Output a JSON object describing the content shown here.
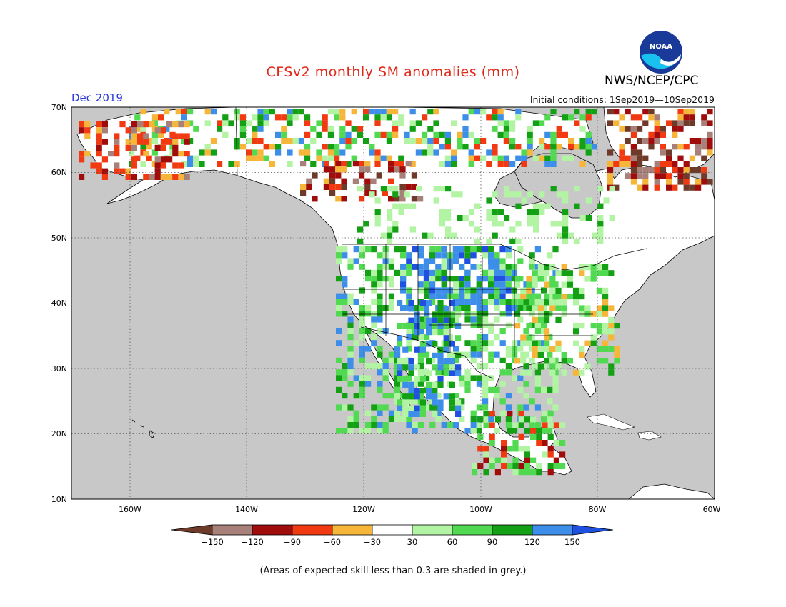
{
  "header": {
    "title": "CFSv2 monthly SM anomalies (mm)",
    "valid_month": "Dec 2019",
    "initial_conditions": "Initial conditions: 1Sep2019—10Sep2019",
    "agency": "NWS/NCEP/CPC",
    "logo_text": "NOAA"
  },
  "map": {
    "lat_labels": [
      "70N",
      "60N",
      "50N",
      "40N",
      "30N",
      "20N",
      "10N"
    ],
    "lon_labels": [
      "160W",
      "140W",
      "120W",
      "100W",
      "80W",
      "60W"
    ],
    "extent": {
      "lon": [
        -170,
        -60
      ],
      "lat": [
        10,
        70
      ]
    },
    "ocean_color": "#c8c8c8",
    "land_color": "#ffffff"
  },
  "colorbar": {
    "ticks": [
      "−150",
      "−120",
      "−90",
      "−60",
      "−30",
      "30",
      "60",
      "90",
      "120",
      "150"
    ],
    "colors": [
      "#6e3a2a",
      "#a8807a",
      "#a00c0c",
      "#f23a12",
      "#f6b63a",
      "#ffffff",
      "#b2f4a4",
      "#52d952",
      "#14a014",
      "#3c8ee8",
      "#2050e0"
    ]
  },
  "footnote": "(Areas of expected skill less than 0.3 are shaded in grey.)"
}
